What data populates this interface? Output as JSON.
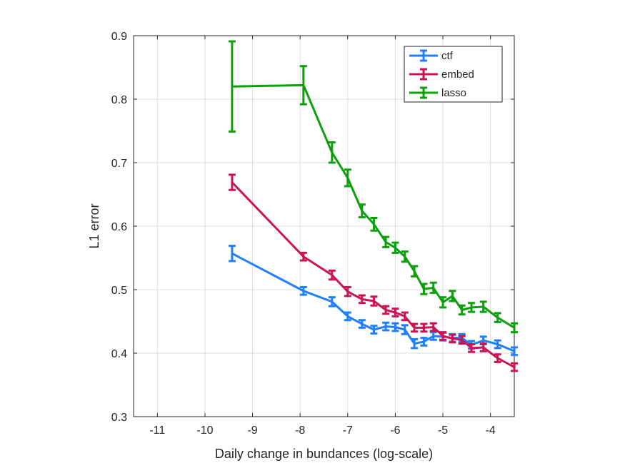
{
  "chart_data": {
    "type": "line",
    "title": "",
    "xlabel": "Daily change in bundances (log-scale)",
    "ylabel": "L1 error",
    "xlim": [
      -11.5,
      -3.5
    ],
    "ylim": [
      0.3,
      0.9
    ],
    "xticks": [
      -11,
      -10,
      -9,
      -8,
      -7,
      -6,
      -5,
      -4
    ],
    "xtick_labels": [
      "-11",
      "-10",
      "-9",
      "-8",
      "-7",
      "-6",
      "-5",
      "-4"
    ],
    "yticks": [
      0.3,
      0.4,
      0.5,
      0.6,
      0.7,
      0.8,
      0.9
    ],
    "ytick_labels": [
      "0.3",
      "0.4",
      "0.5",
      "0.6",
      "0.7",
      "0.8",
      "0.9"
    ],
    "grid": true,
    "legend_position": "top-right",
    "series": [
      {
        "name": "ctf",
        "color": "#1f7fff",
        "x": [
          -9.43,
          -7.93,
          -7.33,
          -7.0,
          -6.7,
          -6.45,
          -6.2,
          -6.0,
          -5.8,
          -5.6,
          -5.4,
          -5.2,
          -5.0,
          -4.8,
          -4.6,
          -4.4,
          -4.15,
          -3.85,
          -3.5
        ],
        "y": [
          0.557,
          0.498,
          0.481,
          0.458,
          0.446,
          0.437,
          0.442,
          0.441,
          0.437,
          0.415,
          0.418,
          0.427,
          0.426,
          0.424,
          0.424,
          0.413,
          0.42,
          0.414,
          0.403
        ],
        "err": [
          0.012,
          0.006,
          0.007,
          0.006,
          0.006,
          0.006,
          0.006,
          0.006,
          0.007,
          0.007,
          0.006,
          0.006,
          0.006,
          0.006,
          0.006,
          0.006,
          0.006,
          0.006,
          0.006
        ]
      },
      {
        "name": "embed",
        "color": "#cc1455",
        "x": [
          -9.43,
          -7.93,
          -7.33,
          -7.0,
          -6.7,
          -6.45,
          -6.2,
          -6.0,
          -5.8,
          -5.6,
          -5.4,
          -5.2,
          -5.0,
          -4.8,
          -4.6,
          -4.4,
          -4.15,
          -3.85,
          -3.5
        ],
        "y": [
          0.669,
          0.552,
          0.523,
          0.497,
          0.485,
          0.482,
          0.468,
          0.464,
          0.458,
          0.44,
          0.44,
          0.441,
          0.427,
          0.423,
          0.421,
          0.408,
          0.409,
          0.392,
          0.378
        ],
        "err": [
          0.012,
          0.006,
          0.007,
          0.007,
          0.006,
          0.007,
          0.006,
          0.006,
          0.006,
          0.006,
          0.006,
          0.006,
          0.006,
          0.006,
          0.006,
          0.006,
          0.006,
          0.006,
          0.006
        ]
      },
      {
        "name": "lasso",
        "color": "#0ca00c",
        "x": [
          -9.43,
          -7.93,
          -7.33,
          -7.0,
          -6.7,
          -6.45,
          -6.2,
          -6.0,
          -5.8,
          -5.6,
          -5.4,
          -5.2,
          -5.0,
          -4.8,
          -4.6,
          -4.4,
          -4.15,
          -3.85,
          -3.5
        ],
        "y": [
          0.82,
          0.822,
          0.716,
          0.676,
          0.624,
          0.603,
          0.575,
          0.566,
          0.552,
          0.529,
          0.501,
          0.503,
          0.48,
          0.49,
          0.468,
          0.472,
          0.473,
          0.456,
          0.44
        ],
        "err": [
          0.071,
          0.03,
          0.016,
          0.013,
          0.01,
          0.01,
          0.008,
          0.008,
          0.008,
          0.008,
          0.008,
          0.008,
          0.008,
          0.008,
          0.007,
          0.007,
          0.008,
          0.007,
          0.007
        ]
      }
    ]
  }
}
